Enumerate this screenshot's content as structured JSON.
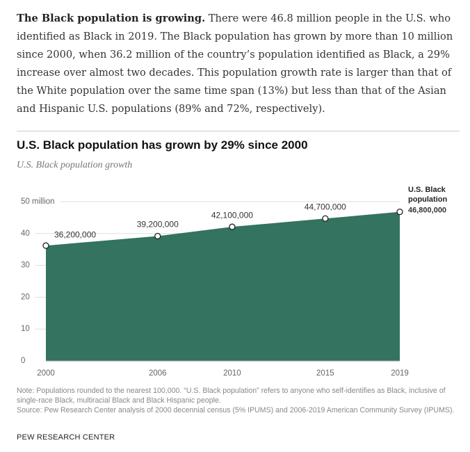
{
  "intro": {
    "lead": "The Black population is growing.",
    "text": "There were 46.8 million people in the U.S. who identified as Black in 2019. The Black population has grown by more than 10 million since 2000, when 36.2 million of the country’s population identified as Black, a 29% increase over almost two decades. This population growth rate is larger than that of the White population over the same time span (13%) but less than that of the Asian and Hispanic U.S. populations (89% and 72%, respectively)."
  },
  "chart_data": {
    "type": "area",
    "title": "U.S. Black population has grown by 29% since 2000",
    "subtitle": "U.S. Black population growth",
    "x": [
      2000,
      2006,
      2010,
      2015,
      2019
    ],
    "values": [
      36.2,
      39.2,
      42.1,
      44.7,
      46.8
    ],
    "value_labels": [
      "36,200,000",
      "39,200,000",
      "42,100,000",
      "44,700,000",
      "46,800,000"
    ],
    "annotation": "U.S. Black population",
    "color": "#33735f",
    "xlim": [
      2000,
      2019
    ],
    "xticks": [
      2000,
      2006,
      2010,
      2015,
      2019
    ],
    "ylim": [
      0,
      50
    ],
    "yticks": [
      0,
      10,
      20,
      30,
      40,
      {
        "value": 50,
        "label": "50 million"
      }
    ],
    "grid": true,
    "note": "Note: Populations rounded to the nearest 100,000. “U.S. Black population” refers to anyone who self-identifies as Black, inclusive of single-race Black, multiracial Black and Black Hispanic people.",
    "source": "Source: Pew Research Center analysis of 2000 decennial census (5% IPUMS) and 2006-2019 American Community Survey (IPUMS).",
    "footer": "PEW RESEARCH CENTER"
  }
}
